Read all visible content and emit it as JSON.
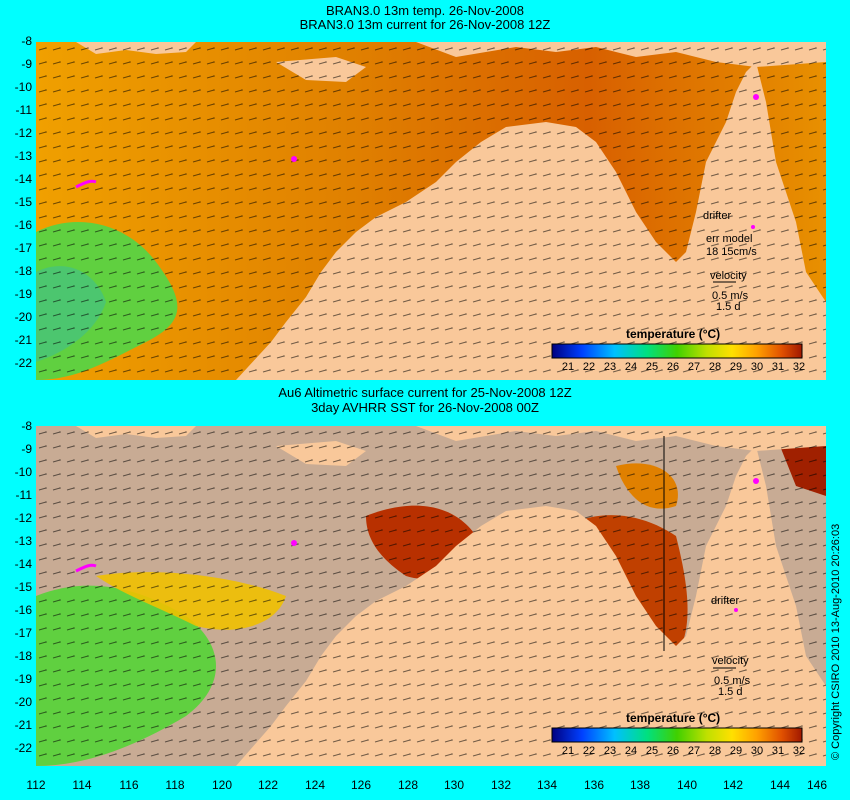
{
  "top_panel": {
    "title_line1": "BRAN3.0 13m temp. 26-Nov-2008",
    "title_line2": "BRAN3.0 13m current for 26-Nov-2008 12Z",
    "drifter_label": "drifter",
    "err_model_label": "err model",
    "err_model_value": "18 15cm/s",
    "velocity_label": "velocity",
    "velocity_scale": "0.5 m/s",
    "velocity_time": "1.5 d",
    "colorbar_title": "temperature (°C)"
  },
  "bottom_panel": {
    "title_line1": "Au6 Altimetric surface current for 25-Nov-2008 12Z",
    "title_line2": "3day AVHRR SST for 26-Nov-2008 00Z",
    "drifter_label": "drifter",
    "velocity_label": "velocity",
    "velocity_scale": "0.5 m/s",
    "velocity_time": "1.5 d",
    "colorbar_title": "temperature (°C)"
  },
  "y_ticks": [
    "-8",
    "-9",
    "-10",
    "-11",
    "-12",
    "-13",
    "-14",
    "-15",
    "-16",
    "-17",
    "-18",
    "-19",
    "-20",
    "-21",
    "-22"
  ],
  "x_ticks": [
    "112",
    "114",
    "116",
    "118",
    "120",
    "122",
    "124",
    "126",
    "128",
    "130",
    "132",
    "134",
    "136",
    "138",
    "140",
    "142",
    "144",
    "146"
  ],
  "colorbar_ticks": [
    "21",
    "22",
    "23",
    "24",
    "25",
    "26",
    "27",
    "28",
    "29",
    "30",
    "31",
    "32"
  ],
  "copyright": "© Copyright CSIRO 2010 13-Aug-2010 20:26:03",
  "colors": {
    "background": "#00ffff",
    "land": "#f9c89a",
    "warm_sea": "#e07800",
    "cool_sea": "#60d040",
    "cloud": "#c8ab94",
    "drifter": "#ff00ff"
  }
}
